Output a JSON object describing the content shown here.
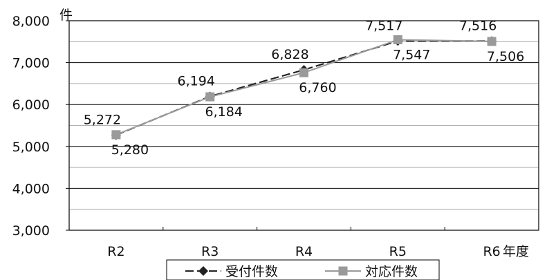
{
  "chart_data": {
    "type": "line",
    "categories": [
      "R2",
      "R3",
      "R4",
      "R5",
      "R6"
    ],
    "x_unit": "年度",
    "y_unit": "件",
    "ylim": [
      3000,
      8000
    ],
    "y_ticks": [
      "3,000",
      "4,000",
      "5,000",
      "6,000",
      "7,000",
      "8,000"
    ],
    "grid": true,
    "legend_position": "bottom",
    "series": [
      {
        "name": "受付件数",
        "values": [
          5272,
          6194,
          6828,
          7517,
          7516
        ],
        "labels": [
          "5,272",
          "6,194",
          "6,828",
          "7,517",
          "7,516"
        ],
        "color": "#222222",
        "line_style": "dashed",
        "marker": "diamond"
      },
      {
        "name": "対応件数",
        "values": [
          5280,
          6184,
          6760,
          7547,
          7506
        ],
        "labels": [
          "5,280",
          "6,184",
          "6,760",
          "7,547",
          "7,506"
        ],
        "color": "#9a9a9a",
        "line_style": "solid",
        "marker": "square"
      }
    ]
  }
}
